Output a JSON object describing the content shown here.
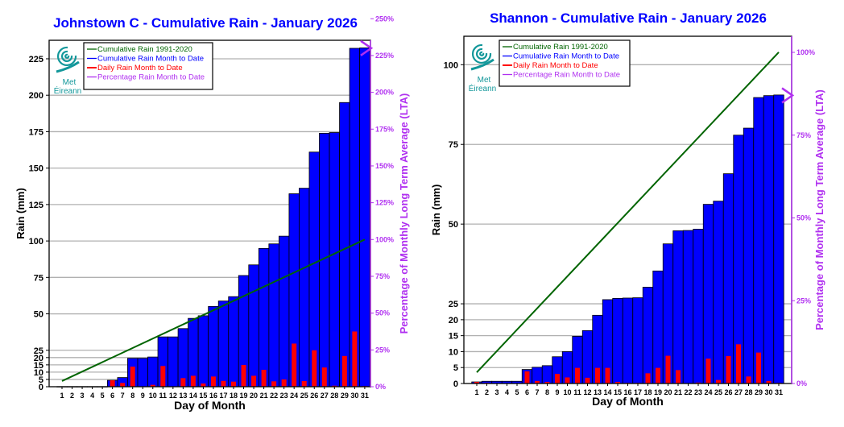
{
  "colors": {
    "cumulative": "#0000ff",
    "daily": "#ff0000",
    "lta": "#006400",
    "percentage": "#b030f0",
    "title": "#0000ff",
    "logo": "#12979a"
  },
  "logo": {
    "line1": "Met",
    "line2": "Éireann"
  },
  "chart_data": [
    {
      "type": "bar",
      "title": "Johnstown C - Cumulative Rain -  January   2026",
      "xlabel": "Day of Month",
      "ylabel": "Rain (mm)",
      "y2label": "Percentage of Monthly Long Term Average (LTA)",
      "x": [
        1,
        2,
        3,
        4,
        5,
        6,
        7,
        8,
        9,
        10,
        11,
        12,
        13,
        14,
        15,
        16,
        17,
        18,
        19,
        20,
        21,
        22,
        23,
        24,
        25,
        26,
        27,
        28,
        29,
        30,
        31
      ],
      "yticks": [
        0,
        5,
        10,
        15,
        20,
        25,
        50,
        75,
        100,
        125,
        150,
        175,
        200,
        225
      ],
      "y2ticks": [
        "0%",
        "25%",
        "50%",
        "75%",
        "100%",
        "125%",
        "150%",
        "175%",
        "200%",
        "225%",
        "250%"
      ],
      "y2tick_values": [
        0,
        25,
        50,
        75,
        100,
        125,
        150,
        175,
        200,
        225,
        250
      ],
      "legend": [
        "Cumulative Rain 1991-2020",
        "Cumulative Rain Month to Date",
        "Daily Rain Month to Date",
        "Percentage Rain Month to Date"
      ],
      "legend_position": "top-left",
      "grid": true,
      "series": [
        {
          "name": "Cumulative Rain Month to Date",
          "type": "bar",
          "values": [
            0.1,
            0.1,
            0.1,
            0.1,
            0.1,
            4.4,
            6.3,
            19.5,
            19.5,
            20.4,
            34.2,
            34.2,
            39.9,
            46.9,
            48.7,
            55.1,
            58.8,
            61.8,
            76.3,
            83.6,
            94.9,
            98.0,
            103.3,
            132.4,
            136.2,
            161.0,
            173.9,
            174.4,
            195.0,
            232.2,
            232.5
          ]
        },
        {
          "name": "Daily Rain Month to Date",
          "type": "bar",
          "values": [
            0,
            0,
            0,
            0,
            0,
            4.4,
            2.6,
            13.8,
            0.2,
            1.3,
            14.2,
            0.2,
            5.9,
            7.5,
            2.2,
            7.0,
            4.0,
            3.5,
            14.9,
            7.5,
            11.6,
            3.7,
            5.0,
            29.6,
            3.9,
            25.0,
            13.2,
            0.7,
            21.1,
            37.9,
            0.4
          ]
        },
        {
          "name": "Cumulative Rain 1991-2020",
          "type": "line",
          "x": [
            1,
            31
          ],
          "values": [
            3.9,
            101
          ]
        },
        {
          "name": "Percentage Rain Month to Date",
          "type": "marker",
          "x": 31,
          "value_pct": 230
        }
      ]
    },
    {
      "type": "bar",
      "title": "Shannon - Cumulative Rain -  January   2026",
      "xlabel": "Day of Month",
      "ylabel": "Rain (mm)",
      "y2label": "Percentage of Monthly Long Term Average (LTA)",
      "x": [
        1,
        2,
        3,
        4,
        5,
        6,
        7,
        8,
        9,
        10,
        11,
        12,
        13,
        14,
        15,
        16,
        17,
        18,
        19,
        20,
        21,
        22,
        23,
        24,
        25,
        26,
        27,
        28,
        29,
        30,
        31
      ],
      "yticks": [
        0,
        5,
        10,
        15,
        20,
        25,
        50,
        75,
        100
      ],
      "y2ticks": [
        "0%",
        "25%",
        "50%",
        "75%",
        "100%"
      ],
      "y2tick_values": [
        0,
        25,
        50,
        75,
        100
      ],
      "legend": [
        "Cumulative Rain 1991-2020",
        "Cumulative Rain Month to Date",
        "Daily Rain Month to Date",
        "Percentage Rain Month to Date"
      ],
      "legend_position": "top-left",
      "grid": true,
      "series": [
        {
          "name": "Cumulative Rain Month to Date",
          "type": "bar",
          "values": [
            0.5,
            0.7,
            0.7,
            0.7,
            0.7,
            4.4,
            5.1,
            5.6,
            8.4,
            10.0,
            14.8,
            16.6,
            21.4,
            26.3,
            26.7,
            26.8,
            26.9,
            30.2,
            35.3,
            43.8,
            47.9,
            48.0,
            48.4,
            56.2,
            57.2,
            65.8,
            77.9,
            80.1,
            89.7,
            90.3,
            90.5
          ]
        },
        {
          "name": "Daily Rain Month to Date",
          "type": "bar",
          "values": [
            0.5,
            0.2,
            0,
            0,
            0,
            3.8,
            0.8,
            0.5,
            3.0,
            1.9,
            4.9,
            1.8,
            4.9,
            4.9,
            0.5,
            0.2,
            0.2,
            3.2,
            4.9,
            8.7,
            4.2,
            0.1,
            0.3,
            7.8,
            1.1,
            8.6,
            12.3,
            2.2,
            9.7,
            0.8,
            0.2
          ]
        },
        {
          "name": "Cumulative Rain 1991-2020",
          "type": "line",
          "x": [
            1,
            31
          ],
          "values": [
            3.5,
            103.9
          ]
        },
        {
          "name": "Percentage Rain Month to Date",
          "type": "marker",
          "x": 31,
          "value_pct": 87
        }
      ]
    }
  ]
}
